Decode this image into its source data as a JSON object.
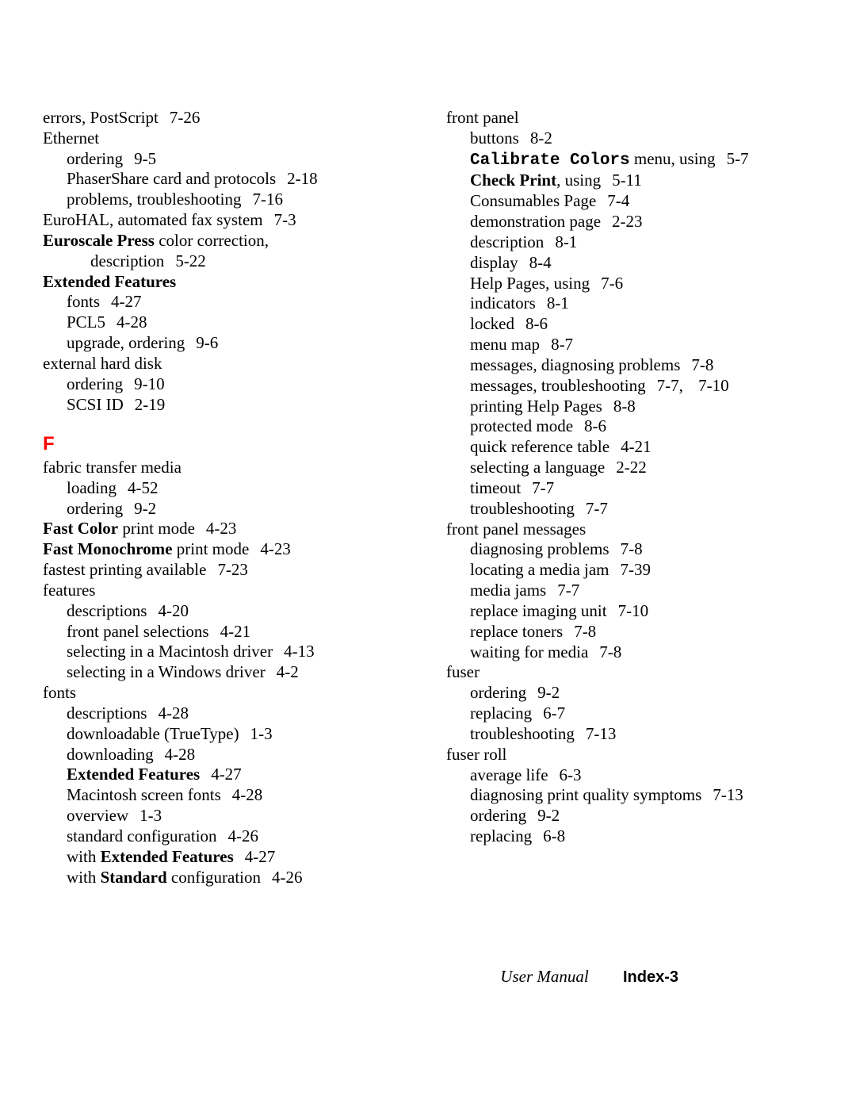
{
  "left": [
    {
      "indent": 0,
      "spans": [
        {
          "t": "errors, PostScript"
        },
        {
          "gap": true
        },
        {
          "t": "7-26"
        }
      ]
    },
    {
      "indent": 0,
      "spans": [
        {
          "t": "Ethernet"
        }
      ]
    },
    {
      "indent": 1,
      "spans": [
        {
          "t": "ordering"
        },
        {
          "gap": true
        },
        {
          "t": "9-5"
        }
      ]
    },
    {
      "indent": 1,
      "spans": [
        {
          "t": "PhaserShare card and protocols"
        },
        {
          "gap": true
        },
        {
          "t": "2-18"
        }
      ]
    },
    {
      "indent": 1,
      "spans": [
        {
          "t": "problems, troubleshooting"
        },
        {
          "gap": true
        },
        {
          "t": "7-16"
        }
      ]
    },
    {
      "indent": 0,
      "spans": [
        {
          "t": "EuroHAL, automated fax system"
        },
        {
          "gap": true
        },
        {
          "t": "7-3"
        }
      ]
    },
    {
      "indent": 0,
      "spans": [
        {
          "t": "Euroscale Press",
          "style": "bold"
        },
        {
          "t": " color correction, "
        }
      ]
    },
    {
      "indent": 2,
      "spans": [
        {
          "t": "description"
        },
        {
          "gap": true
        },
        {
          "t": "5-22"
        }
      ]
    },
    {
      "indent": 0,
      "spans": [
        {
          "t": "Extended Features",
          "style": "bold"
        }
      ]
    },
    {
      "indent": 1,
      "spans": [
        {
          "t": "fonts"
        },
        {
          "gap": true
        },
        {
          "t": "4-27"
        }
      ]
    },
    {
      "indent": 1,
      "spans": [
        {
          "t": "PCL5"
        },
        {
          "gap": true
        },
        {
          "t": "4-28"
        }
      ]
    },
    {
      "indent": 1,
      "spans": [
        {
          "t": "upgrade, ordering"
        },
        {
          "gap": true
        },
        {
          "t": "9-6"
        }
      ]
    },
    {
      "indent": 0,
      "spans": [
        {
          "t": "external hard disk"
        }
      ]
    },
    {
      "indent": 1,
      "spans": [
        {
          "t": "ordering"
        },
        {
          "gap": true
        },
        {
          "t": "9-10"
        }
      ]
    },
    {
      "indent": 1,
      "spans": [
        {
          "t": "SCSI ID"
        },
        {
          "gap": true
        },
        {
          "t": "2-19"
        }
      ]
    },
    {
      "section": "F"
    },
    {
      "indent": 0,
      "spans": [
        {
          "t": "fabric transfer media"
        }
      ]
    },
    {
      "indent": 1,
      "spans": [
        {
          "t": "loading"
        },
        {
          "gap": true
        },
        {
          "t": "4-52"
        }
      ]
    },
    {
      "indent": 1,
      "spans": [
        {
          "t": "ordering"
        },
        {
          "gap": true
        },
        {
          "t": "9-2"
        }
      ]
    },
    {
      "indent": 0,
      "spans": [
        {
          "t": "Fast Color",
          "style": "bold"
        },
        {
          "t": " print mode"
        },
        {
          "gap": true
        },
        {
          "t": "4-23"
        }
      ]
    },
    {
      "indent": 0,
      "spans": [
        {
          "t": "Fast Monochrome ",
          "style": "bold"
        },
        {
          "t": " print mode"
        },
        {
          "gap": true
        },
        {
          "t": "4-23"
        }
      ]
    },
    {
      "indent": 0,
      "spans": [
        {
          "t": "fastest printing available"
        },
        {
          "gap": true
        },
        {
          "t": "7-23"
        }
      ]
    },
    {
      "indent": 0,
      "spans": [
        {
          "t": "features"
        }
      ]
    },
    {
      "indent": 1,
      "spans": [
        {
          "t": "descriptions"
        },
        {
          "gap": true
        },
        {
          "t": "4-20"
        }
      ]
    },
    {
      "indent": 1,
      "spans": [
        {
          "t": "front panel selections"
        },
        {
          "gap": true
        },
        {
          "t": "4-21"
        }
      ]
    },
    {
      "indent": 1,
      "spans": [
        {
          "t": "selecting in a Macintosh driver"
        },
        {
          "gap": true
        },
        {
          "t": "4-13"
        }
      ]
    },
    {
      "indent": 1,
      "spans": [
        {
          "t": "selecting in a Windows driver"
        },
        {
          "gap": true
        },
        {
          "t": "4-2"
        }
      ]
    },
    {
      "indent": 0,
      "spans": [
        {
          "t": "fonts"
        }
      ]
    },
    {
      "indent": 1,
      "spans": [
        {
          "t": "descriptions"
        },
        {
          "gap": true
        },
        {
          "t": "4-28"
        }
      ]
    },
    {
      "indent": 1,
      "spans": [
        {
          "t": "downloadable (TrueType)"
        },
        {
          "gap": true
        },
        {
          "t": "1-3"
        }
      ]
    },
    {
      "indent": 1,
      "spans": [
        {
          "t": "downloading"
        },
        {
          "gap": true
        },
        {
          "t": "4-28"
        }
      ]
    },
    {
      "indent": 1,
      "spans": [
        {
          "t": "Extended Features",
          "style": "bold"
        },
        {
          "gap": true
        },
        {
          "t": "4-27"
        }
      ]
    },
    {
      "indent": 1,
      "spans": [
        {
          "t": "Macintosh screen fonts"
        },
        {
          "gap": true
        },
        {
          "t": "4-28"
        }
      ]
    },
    {
      "indent": 1,
      "spans": [
        {
          "t": "overview"
        },
        {
          "gap": true
        },
        {
          "t": "1-3"
        }
      ]
    },
    {
      "indent": 1,
      "spans": [
        {
          "t": "standard configuration"
        },
        {
          "gap": true
        },
        {
          "t": "4-26"
        }
      ]
    },
    {
      "indent": 1,
      "spans": [
        {
          "t": "with "
        },
        {
          "t": "Extended Features",
          "style": "bold"
        },
        {
          "gap": true
        },
        {
          "t": "4-27"
        }
      ]
    },
    {
      "indent": 1,
      "spans": [
        {
          "t": "with "
        },
        {
          "t": "Standard",
          "style": "bold"
        },
        {
          "t": " configuration"
        },
        {
          "gap": true
        },
        {
          "t": "4-26"
        }
      ]
    }
  ],
  "right": [
    {
      "indent": 0,
      "spans": [
        {
          "t": "front panel"
        }
      ]
    },
    {
      "indent": 1,
      "spans": [
        {
          "t": "buttons"
        },
        {
          "gap": true
        },
        {
          "t": "8-2"
        }
      ]
    },
    {
      "indent": 1,
      "spans": [
        {
          "t": "Calibrate Colors",
          "style": "mono"
        },
        {
          "t": " menu, using"
        },
        {
          "gap": true
        },
        {
          "t": "5-7"
        }
      ]
    },
    {
      "indent": 1,
      "spans": [
        {
          "t": "Check Print",
          "style": "bold"
        },
        {
          "t": ", using"
        },
        {
          "gap": true
        },
        {
          "t": "5-11"
        }
      ]
    },
    {
      "indent": 1,
      "spans": [
        {
          "t": "Consumables Page"
        },
        {
          "gap": true
        },
        {
          "t": "7-4"
        }
      ]
    },
    {
      "indent": 1,
      "spans": [
        {
          "t": "demonstration page"
        },
        {
          "gap": true
        },
        {
          "t": "2-23"
        }
      ]
    },
    {
      "indent": 1,
      "spans": [
        {
          "t": "description"
        },
        {
          "gap": true
        },
        {
          "t": "8-1"
        }
      ]
    },
    {
      "indent": 1,
      "spans": [
        {
          "t": "display"
        },
        {
          "gap": true
        },
        {
          "t": "8-4"
        }
      ]
    },
    {
      "indent": 1,
      "spans": [
        {
          "t": "Help Pages, using"
        },
        {
          "gap": true
        },
        {
          "t": "7-6"
        }
      ]
    },
    {
      "indent": 1,
      "spans": [
        {
          "t": "indicators"
        },
        {
          "gap": true
        },
        {
          "t": "8-1"
        }
      ]
    },
    {
      "indent": 1,
      "spans": [
        {
          "t": "locked"
        },
        {
          "gap": true
        },
        {
          "t": "8-6"
        }
      ]
    },
    {
      "indent": 1,
      "spans": [
        {
          "t": "menu map"
        },
        {
          "gap": true
        },
        {
          "t": "8-7"
        }
      ]
    },
    {
      "indent": 1,
      "spans": [
        {
          "t": "messages, diagnosing problems"
        },
        {
          "gap": true
        },
        {
          "t": "7-8"
        }
      ]
    },
    {
      "indent": 1,
      "spans": [
        {
          "t": "messages, troubleshooting"
        },
        {
          "gap": true
        },
        {
          "t": "7-7,"
        },
        {
          "gap": true
        },
        {
          "t": " 7-10"
        }
      ]
    },
    {
      "indent": 1,
      "spans": [
        {
          "t": "printing Help Pages"
        },
        {
          "gap": true
        },
        {
          "t": "8-8"
        }
      ]
    },
    {
      "indent": 1,
      "spans": [
        {
          "t": "protected mode"
        },
        {
          "gap": true
        },
        {
          "t": "8-6"
        }
      ]
    },
    {
      "indent": 1,
      "spans": [
        {
          "t": "quick reference table"
        },
        {
          "gap": true
        },
        {
          "t": "4-21"
        }
      ]
    },
    {
      "indent": 1,
      "spans": [
        {
          "t": "selecting a language"
        },
        {
          "gap": true
        },
        {
          "t": "2-22"
        }
      ]
    },
    {
      "indent": 1,
      "spans": [
        {
          "t": "timeout"
        },
        {
          "gap": true
        },
        {
          "t": "7-7"
        }
      ]
    },
    {
      "indent": 1,
      "spans": [
        {
          "t": "troubleshooting"
        },
        {
          "gap": true
        },
        {
          "t": "7-7"
        }
      ]
    },
    {
      "indent": 0,
      "spans": [
        {
          "t": "front panel messages"
        }
      ]
    },
    {
      "indent": 1,
      "spans": [
        {
          "t": "diagnosing problems"
        },
        {
          "gap": true
        },
        {
          "t": "7-8"
        }
      ]
    },
    {
      "indent": 1,
      "spans": [
        {
          "t": "locating a media jam"
        },
        {
          "gap": true
        },
        {
          "t": "7-39"
        }
      ]
    },
    {
      "indent": 1,
      "spans": [
        {
          "t": "media jams"
        },
        {
          "gap": true
        },
        {
          "t": "7-7"
        }
      ]
    },
    {
      "indent": 1,
      "spans": [
        {
          "t": "replace imaging unit"
        },
        {
          "gap": true
        },
        {
          "t": "7-10"
        }
      ]
    },
    {
      "indent": 1,
      "spans": [
        {
          "t": "replace toners"
        },
        {
          "gap": true
        },
        {
          "t": "7-8"
        }
      ]
    },
    {
      "indent": 1,
      "spans": [
        {
          "t": "waiting for media"
        },
        {
          "gap": true
        },
        {
          "t": "7-8"
        }
      ]
    },
    {
      "indent": 0,
      "spans": [
        {
          "t": "fuser"
        }
      ]
    },
    {
      "indent": 1,
      "spans": [
        {
          "t": "ordering"
        },
        {
          "gap": true
        },
        {
          "t": "9-2"
        }
      ]
    },
    {
      "indent": 1,
      "spans": [
        {
          "t": "replacing"
        },
        {
          "gap": true
        },
        {
          "t": "6-7"
        }
      ]
    },
    {
      "indent": 1,
      "spans": [
        {
          "t": "troubleshooting"
        },
        {
          "gap": true
        },
        {
          "t": "7-13"
        }
      ]
    },
    {
      "indent": 0,
      "spans": [
        {
          "t": "fuser roll"
        }
      ]
    },
    {
      "indent": 1,
      "spans": [
        {
          "t": "average life"
        },
        {
          "gap": true
        },
        {
          "t": "6-3"
        }
      ]
    },
    {
      "indent": 1,
      "spans": [
        {
          "t": "diagnosing print quality symptoms"
        },
        {
          "gap": true
        },
        {
          "t": "7-13"
        }
      ]
    },
    {
      "indent": 1,
      "spans": [
        {
          "t": "ordering"
        },
        {
          "gap": true
        },
        {
          "t": "9-2"
        }
      ]
    },
    {
      "indent": 1,
      "spans": [
        {
          "t": "replacing"
        },
        {
          "gap": true
        },
        {
          "t": "6-8"
        }
      ]
    }
  ],
  "footer": {
    "usermanual": "User Manual",
    "index": "Index-3"
  }
}
